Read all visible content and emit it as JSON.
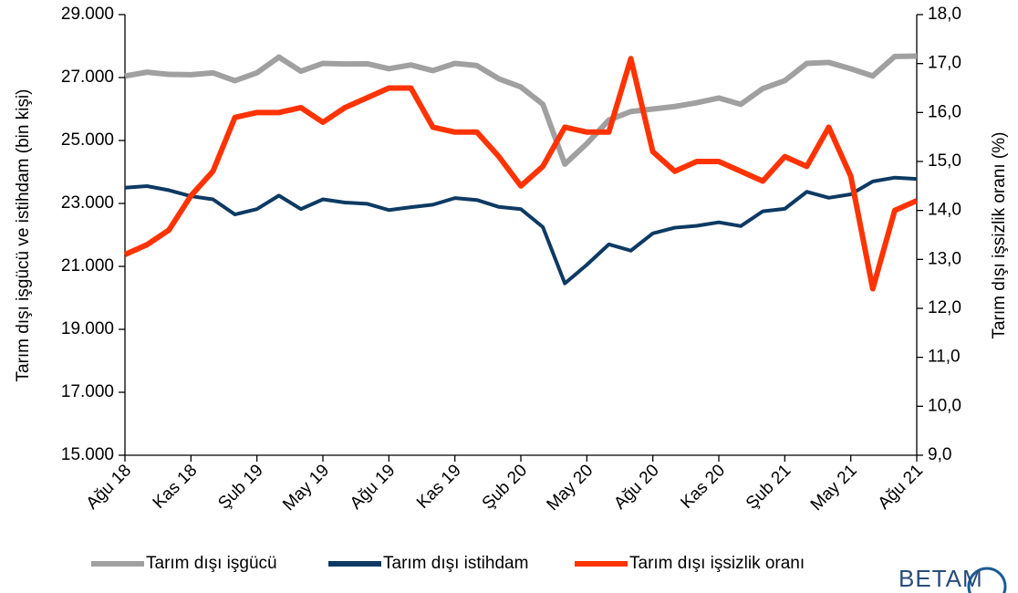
{
  "chart_data": {
    "type": "line",
    "ylabel": "Tarım dışı işgücü ve istihdam (bin kişi)",
    "y2label": "Tarım dışı işsizlik oranı (%)",
    "categories": [
      "Ağu 18",
      null,
      null,
      "Kas 18",
      null,
      null,
      "Şub 19",
      null,
      null,
      "May 19",
      null,
      null,
      "Ağu 19",
      null,
      null,
      "Kas 19",
      null,
      null,
      "Şub 20",
      null,
      null,
      "May 20",
      null,
      null,
      "Ağu 20",
      null,
      null,
      "Kas 20",
      null,
      null,
      "Şub 21",
      null,
      null,
      "May 21",
      null,
      null,
      "Ağu 21"
    ],
    "ylim": [
      15000,
      29000
    ],
    "yticks": [
      {
        "value": 15000,
        "label": "15.000"
      },
      {
        "value": 17000,
        "label": "17.000"
      },
      {
        "value": 19000,
        "label": "19.000"
      },
      {
        "value": 21000,
        "label": "21.000"
      },
      {
        "value": 23000,
        "label": "23.000"
      },
      {
        "value": 25000,
        "label": "25.000"
      },
      {
        "value": 27000,
        "label": "27.000"
      },
      {
        "value": 29000,
        "label": "29.000"
      }
    ],
    "y2lim": [
      9,
      18
    ],
    "y2ticks": [
      {
        "value": 9,
        "label": "9,0"
      },
      {
        "value": 10,
        "label": "10,0"
      },
      {
        "value": 11,
        "label": "11,0"
      },
      {
        "value": 12,
        "label": "12,0"
      },
      {
        "value": 13,
        "label": "13,0"
      },
      {
        "value": 14,
        "label": "14,0"
      },
      {
        "value": 15,
        "label": "15,0"
      },
      {
        "value": 16,
        "label": "16,0"
      },
      {
        "value": 17,
        "label": "17,0"
      },
      {
        "value": 18,
        "label": "18,0"
      }
    ],
    "grid": false,
    "legend": "bottom",
    "series": [
      {
        "name": "Tarım dışı işgücü",
        "color": "#a0a0a0",
        "values": [
          27050,
          27170,
          27100,
          27090,
          27150,
          26900,
          27150,
          27650,
          27200,
          27450,
          27430,
          27440,
          27280,
          27400,
          27220,
          27450,
          27380,
          26960,
          26700,
          26150,
          24250,
          24900,
          25650,
          25920,
          26000,
          26080,
          26200,
          26350,
          26150,
          26650,
          26900,
          27450,
          27480,
          27280,
          27050,
          27670,
          27680
        ]
      },
      {
        "name": "Tarım dışı istihdam",
        "color": "#0d3a63",
        "values": [
          23500,
          23550,
          23420,
          23230,
          23130,
          22650,
          22820,
          23250,
          22820,
          23130,
          23030,
          22990,
          22790,
          22880,
          22960,
          23170,
          23110,
          22890,
          22820,
          22250,
          20460,
          21050,
          21700,
          21500,
          22050,
          22230,
          22290,
          22400,
          22280,
          22750,
          22830,
          23370,
          23180,
          23290,
          23700,
          23820,
          23780
        ]
      },
      {
        "name": "Tarım dışı işsizlik oranı",
        "color": "#ff3300",
        "axis": "y2",
        "values": [
          13.1,
          13.3,
          13.6,
          14.3,
          14.8,
          15.9,
          16.0,
          16.0,
          16.1,
          15.8,
          16.1,
          16.3,
          16.5,
          16.5,
          15.7,
          15.6,
          15.6,
          15.1,
          14.5,
          14.9,
          15.7,
          15.6,
          15.6,
          17.1,
          15.2,
          14.8,
          15.0,
          15.0,
          14.8,
          14.6,
          15.1,
          14.9,
          15.7,
          14.7,
          12.4,
          14.0,
          14.2
        ]
      }
    ]
  },
  "logo": "BETAM"
}
